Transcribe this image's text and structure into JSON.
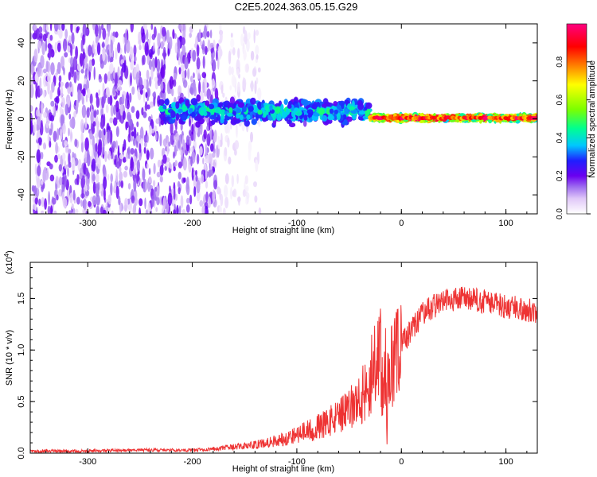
{
  "title": "C2E5.2024.363.05.15.G29",
  "chart_data": [
    {
      "type": "heatmap",
      "xlabel": "Height of straight line (km)",
      "ylabel": "Frequency (Hz)",
      "xlim": [
        -355,
        130
      ],
      "ylim": [
        -50,
        50
      ],
      "xticks": [
        -300,
        -200,
        -100,
        0,
        100
      ],
      "yticks": [
        -40,
        -20,
        0,
        20,
        40
      ],
      "colorbar": {
        "label": "Normalized spectral amplitude",
        "range": [
          0.0,
          1.0
        ],
        "ticks": [
          "0.0",
          "0.2",
          "0.4",
          "0.6",
          "0.8"
        ],
        "colors": [
          "#ffffff",
          "#e0c8f8",
          "#a070f0",
          "#6a00f0",
          "#1f1fff",
          "#00c8ff",
          "#00ff90",
          "#7cff00",
          "#ffff00",
          "#ff8000",
          "#ff0000",
          "#ff0080"
        ]
      },
      "features": [
        {
          "x_range": [
            -355,
            -175
          ],
          "freq_spread": 50,
          "amplitude": 0.15
        },
        {
          "x_range": [
            -175,
            -135
          ],
          "freq_spread": 50,
          "amplitude": 0.05
        },
        {
          "x_range": [
            -230,
            -30
          ],
          "freq_center": 4,
          "freq_spread": 8,
          "amplitude": 0.45
        },
        {
          "x_range": [
            -30,
            130
          ],
          "freq_center": 0.5,
          "freq_spread": 1.5,
          "amplitude": 0.95
        }
      ]
    },
    {
      "type": "line",
      "xlabel": "Height of straight line (km)",
      "ylabel": "SNR (10 * v/v)",
      "y_multiplier": "(x10",
      "y_multiplier_exp": "4",
      "xlim": [
        -355,
        130
      ],
      "ylim": [
        0,
        1.85
      ],
      "xticks": [
        -300,
        -200,
        -100,
        0,
        100
      ],
      "yticks": [
        "0.0",
        "0.5",
        "1.0",
        "1.5"
      ],
      "color": "#ee3333",
      "series": [
        {
          "x": [
            -355,
            -300,
            -250,
            -200,
            -180,
            -160,
            -140,
            -120,
            -100,
            -80,
            -60,
            -50,
            -40,
            -30,
            -25,
            -20,
            -15,
            -10,
            -5,
            0,
            10,
            20,
            30,
            40,
            60,
            80,
            100,
            130
          ],
          "y": [
            0.02,
            0.02,
            0.03,
            0.03,
            0.04,
            0.06,
            0.08,
            0.12,
            0.18,
            0.25,
            0.35,
            0.42,
            0.52,
            0.7,
            0.85,
            0.95,
            0.4,
            0.8,
            0.95,
            1.05,
            1.2,
            1.35,
            1.42,
            1.48,
            1.5,
            1.47,
            1.42,
            1.38
          ]
        }
      ]
    }
  ]
}
